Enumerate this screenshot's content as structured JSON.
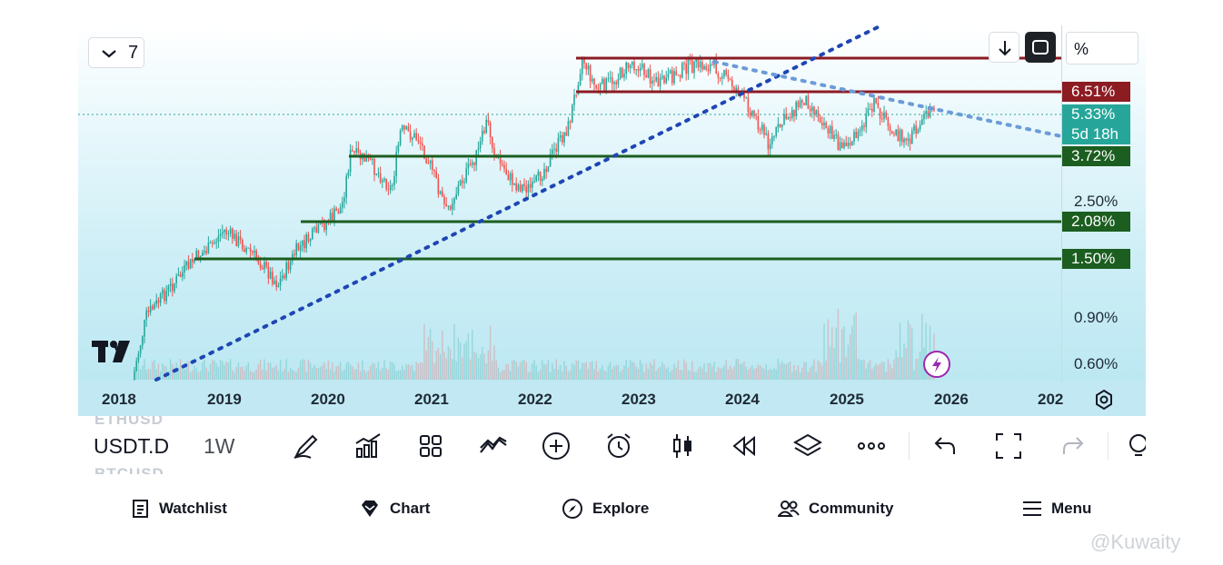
{
  "chart": {
    "interval_number": "7",
    "percent_button": "%",
    "years": [
      "2018",
      "2019",
      "2020",
      "2021",
      "2022",
      "2023",
      "2024",
      "2025",
      "2026",
      "202"
    ],
    "price_ticks": [
      "2.50%",
      "0.90%",
      "0.60%"
    ],
    "price_labels": [
      {
        "text": "6.51%",
        "color": "#8c1b22"
      },
      {
        "text": "5.33%",
        "color": "#26a69a"
      },
      {
        "text": "5d 18h",
        "color": "#26a69a"
      },
      {
        "text": "3.72%",
        "color": "#1b5e20"
      },
      {
        "text": "2.08%",
        "color": "#1b5e20"
      },
      {
        "text": "1.50%",
        "color": "#1b5e20"
      }
    ],
    "resistance_color": "#8c1b22",
    "support_color": "#1b5e20",
    "trendline_color": "#1e46b4",
    "up_candle_color": "#26a69a",
    "down_candle_color": "#ef5350"
  },
  "toolbar": {
    "symbol": "USDT.D",
    "interval": "1W",
    "ghost_top": "ETHUSD",
    "ghost_bottom": "BTCUSD",
    "icons": [
      "drawing-pen-icon",
      "indicators-icon",
      "layouts-grid-icon",
      "patterns-icon",
      "add-plus-icon",
      "alert-clock-icon",
      "candles-icon",
      "replay-icon",
      "layers-icon",
      "more-icon",
      "undo-icon",
      "fullscreen-icon",
      "redo-icon",
      "idea-lightbulb-icon"
    ]
  },
  "nav": {
    "watchlist": "Watchlist",
    "chart": "Chart",
    "explore": "Explore",
    "community": "Community",
    "menu": "Menu"
  },
  "watermark": "@Kuwaity"
}
